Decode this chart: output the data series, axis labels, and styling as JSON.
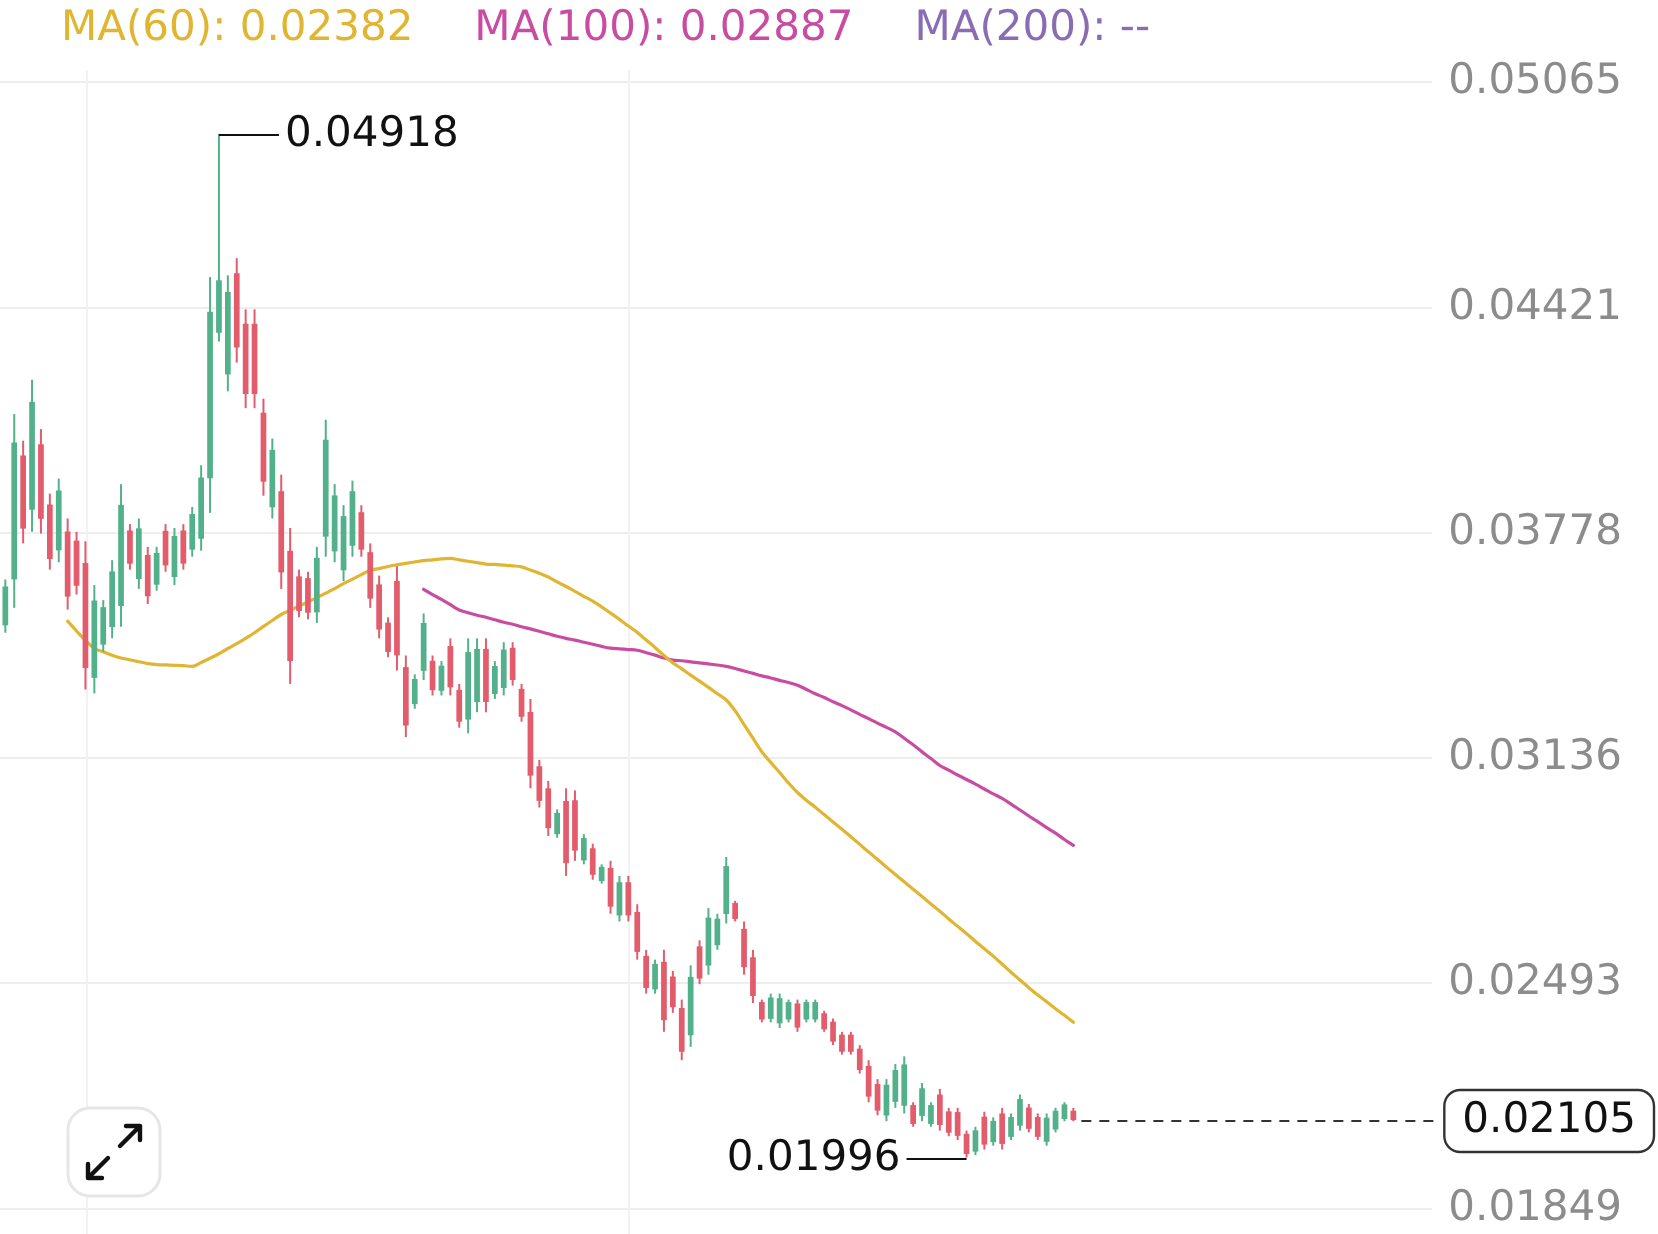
{
  "chart_data": {
    "type": "candlestick",
    "categories": [
      null,
      null,
      null,
      null,
      null,
      null,
      null,
      null,
      null,
      null,
      null,
      null,
      null,
      null,
      null,
      null,
      null,
      null,
      null,
      null,
      null,
      null,
      null,
      null,
      null,
      null,
      null,
      null,
      null,
      null,
      null,
      null,
      null,
      null,
      null,
      null,
      null,
      null,
      null,
      null,
      null,
      null,
      null,
      null,
      null,
      null,
      null,
      null,
      null,
      null,
      null,
      null,
      null,
      null,
      null,
      null,
      null,
      null,
      null,
      null,
      null,
      null,
      null,
      null,
      null,
      null,
      null,
      null,
      null,
      null,
      null,
      null,
      null,
      null,
      null,
      null,
      null,
      null,
      null,
      null,
      null,
      null,
      null,
      null,
      null,
      null,
      null,
      null,
      null,
      null,
      null,
      null,
      null,
      null,
      null,
      null,
      null,
      null,
      null,
      null,
      null,
      null,
      null,
      null,
      null,
      null,
      null,
      null,
      null,
      null,
      null,
      null,
      null,
      null,
      null,
      null,
      null,
      null,
      null,
      null,
      null
    ],
    "ohlc": [
      [
        0.03517,
        0.03646,
        0.03494,
        0.03624
      ],
      [
        0.03648,
        0.04118,
        0.03565,
        0.04035
      ],
      [
        0.03998,
        0.04042,
        0.03749,
        0.03793
      ],
      [
        0.03847,
        0.04216,
        0.03782,
        0.04151
      ],
      [
        0.0403,
        0.04075,
        0.03777,
        0.03821
      ],
      [
        0.03858,
        0.03891,
        0.03674,
        0.03706
      ],
      [
        0.03731,
        0.03934,
        0.03695,
        0.03898
      ],
      [
        0.03781,
        0.0382,
        0.0356,
        0.03599
      ],
      [
        0.03755,
        0.03782,
        0.03603,
        0.0363
      ],
      [
        0.03691,
        0.03755,
        0.03332,
        0.03395
      ],
      [
        0.03367,
        0.0363,
        0.03321,
        0.03584
      ],
      [
        0.03462,
        0.03587,
        0.0344,
        0.03565
      ],
      [
        0.03512,
        0.03701,
        0.03478,
        0.03667
      ],
      [
        0.03572,
        0.03918,
        0.03511,
        0.03857
      ],
      [
        0.03784,
        0.03804,
        0.03674,
        0.03693
      ],
      [
        0.03649,
        0.0382,
        0.03619,
        0.0379
      ],
      [
        0.03714,
        0.03739,
        0.03576,
        0.036
      ],
      [
        0.03633,
        0.03739,
        0.03614,
        0.0372
      ],
      [
        0.03783,
        0.03804,
        0.03668,
        0.03688
      ],
      [
        0.03655,
        0.03793,
        0.0363,
        0.03768
      ],
      [
        0.03784,
        0.03804,
        0.03674,
        0.03693
      ],
      [
        0.03733,
        0.03853,
        0.03711,
        0.03831
      ],
      [
        0.03764,
        0.03972,
        0.03728,
        0.03935
      ],
      [
        0.03937,
        0.04509,
        0.03836,
        0.04408
      ],
      [
        0.04352,
        0.04918,
        0.04325,
        0.04498
      ],
      [
        0.04233,
        0.04514,
        0.04183,
        0.04465
      ],
      [
        0.04518,
        0.04563,
        0.04265,
        0.0431
      ],
      [
        0.04374,
        0.04417,
        0.04135,
        0.04177
      ],
      [
        0.04374,
        0.04417,
        0.04135,
        0.04177
      ],
      [
        0.0412,
        0.04162,
        0.03885,
        0.03927
      ],
      [
        0.03854,
        0.04048,
        0.0382,
        0.04014
      ],
      [
        0.03896,
        0.03945,
        0.03619,
        0.03668
      ],
      [
        0.03726,
        0.03793,
        0.03348,
        0.03415
      ],
      [
        0.03653,
        0.03674,
        0.03538,
        0.03558
      ],
      [
        0.03648,
        0.03668,
        0.03532,
        0.03553
      ],
      [
        0.03554,
        0.03739,
        0.03522,
        0.03706
      ],
      [
        0.0377,
        0.04102,
        0.03711,
        0.04043
      ],
      [
        0.03728,
        0.03918,
        0.03695,
        0.03884
      ],
      [
        0.03674,
        0.03858,
        0.03641,
        0.03825
      ],
      [
        0.03744,
        0.03928,
        0.03711,
        0.03896
      ],
      [
        0.03836,
        0.03858,
        0.03711,
        0.03733
      ],
      [
        0.03722,
        0.03749,
        0.03565,
        0.03593
      ],
      [
        0.0363,
        0.03657,
        0.03478,
        0.03505
      ],
      [
        0.03521,
        0.03538,
        0.03424,
        0.03441
      ],
      [
        0.0364,
        0.03684,
        0.03386,
        0.03431
      ],
      [
        0.03394,
        0.03429,
        0.03196,
        0.03231
      ],
      [
        0.03292,
        0.03375,
        0.03277,
        0.0336
      ],
      [
        0.03387,
        0.03549,
        0.03359,
        0.0352
      ],
      [
        0.03412,
        0.03429,
        0.03315,
        0.03332
      ],
      [
        0.0333,
        0.03413,
        0.03315,
        0.03398
      ],
      [
        0.03454,
        0.03478,
        0.03315,
        0.0334
      ],
      [
        0.03329,
        0.03348,
        0.03223,
        0.03242
      ],
      [
        0.03248,
        0.03478,
        0.03207,
        0.03437
      ],
      [
        0.03298,
        0.03478,
        0.03267,
        0.03446
      ],
      [
        0.03446,
        0.03478,
        0.03267,
        0.03298
      ],
      [
        0.03321,
        0.03413,
        0.03305,
        0.03397
      ],
      [
        0.03338,
        0.03467,
        0.03315,
        0.03444
      ],
      [
        0.03449,
        0.03467,
        0.03343,
        0.03361
      ],
      [
        0.03332,
        0.03348,
        0.0324,
        0.03256
      ],
      [
        0.03266,
        0.03305,
        0.0305,
        0.03088
      ],
      [
        0.03111,
        0.03131,
        0.02995,
        0.03016
      ],
      [
        0.03048,
        0.03071,
        0.02914,
        0.02938
      ],
      [
        0.02921,
        0.0299,
        0.02909,
        0.02978
      ],
      [
        0.03012,
        0.0305,
        0.028,
        0.02838
      ],
      [
        0.03014,
        0.03044,
        0.02843,
        0.02874
      ],
      [
        0.02846,
        0.02919,
        0.02833,
        0.02906
      ],
      [
        0.02877,
        0.02892,
        0.02789,
        0.02805
      ],
      [
        0.02787,
        0.02833,
        0.02778,
        0.02824
      ],
      [
        0.02821,
        0.02843,
        0.02692,
        0.02714
      ],
      [
        0.02689,
        0.028,
        0.0267,
        0.0278
      ],
      [
        0.0278,
        0.028,
        0.0267,
        0.02689
      ],
      [
        0.02695,
        0.02719,
        0.02561,
        0.02585
      ],
      [
        0.0257,
        0.02589,
        0.02464,
        0.02482
      ],
      [
        0.02478,
        0.02561,
        0.02464,
        0.02547
      ],
      [
        0.02553,
        0.02589,
        0.02355,
        0.0239
      ],
      [
        0.02511,
        0.02529,
        0.02409,
        0.02427
      ],
      [
        0.02421,
        0.02447,
        0.02274,
        0.023
      ],
      [
        0.02347,
        0.02545,
        0.02312,
        0.0251
      ],
      [
        0.02597,
        0.02616,
        0.02491,
        0.02509
      ],
      [
        0.02546,
        0.02708,
        0.02518,
        0.02679
      ],
      [
        0.02604,
        0.02692,
        0.02589,
        0.02676
      ],
      [
        0.02693,
        0.02854,
        0.02664,
        0.02826
      ],
      [
        0.02721,
        0.02729,
        0.0267,
        0.02679
      ],
      [
        0.02647,
        0.0267,
        0.02518,
        0.02541
      ],
      [
        0.02566,
        0.02589,
        0.02437,
        0.02459
      ],
      [
        0.02438,
        0.02447,
        0.02382,
        0.02392
      ],
      [
        0.02394,
        0.02464,
        0.02382,
        0.02451
      ],
      [
        0.02381,
        0.02464,
        0.02366,
        0.02449
      ],
      [
        0.02392,
        0.02447,
        0.02382,
        0.02438
      ],
      [
        0.02434,
        0.02447,
        0.02355,
        0.02369
      ],
      [
        0.02392,
        0.02447,
        0.02382,
        0.02438
      ],
      [
        0.02392,
        0.02447,
        0.02382,
        0.02438
      ],
      [
        0.02406,
        0.02415,
        0.02355,
        0.02364
      ],
      [
        0.02382,
        0.02393,
        0.02317,
        0.02329
      ],
      [
        0.02345,
        0.02355,
        0.0229,
        0.023
      ],
      [
        0.02345,
        0.02355,
        0.0229,
        0.023
      ],
      [
        0.02305,
        0.02317,
        0.02236,
        0.02248
      ],
      [
        0.02256,
        0.02274,
        0.02154,
        0.02172
      ],
      [
        0.02204,
        0.0222,
        0.02117,
        0.02132
      ],
      [
        0.02118,
        0.0222,
        0.021,
        0.02202
      ],
      [
        0.02157,
        0.02263,
        0.02138,
        0.02244
      ],
      [
        0.02146,
        0.02285,
        0.02122,
        0.0226
      ],
      [
        0.02144,
        0.02154,
        0.02084,
        0.02094
      ],
      [
        0.02117,
        0.02209,
        0.021,
        0.02192
      ],
      [
        0.02094,
        0.02154,
        0.02084,
        0.02144
      ],
      [
        0.02174,
        0.02192,
        0.02073,
        0.02091
      ],
      [
        0.02126,
        0.02138,
        0.02057,
        0.02069
      ],
      [
        0.02124,
        0.02138,
        0.02046,
        0.0206
      ],
      [
        0.02062,
        0.02073,
        0.01996,
        0.02008
      ],
      [
        0.02015,
        0.02084,
        0.02003,
        0.02072
      ],
      [
        0.02111,
        0.02127,
        0.02019,
        0.02035
      ],
      [
        0.02042,
        0.02111,
        0.0203,
        0.02099
      ],
      [
        0.0212,
        0.02138,
        0.02019,
        0.02037
      ],
      [
        0.02057,
        0.02122,
        0.02046,
        0.0211
      ],
      [
        0.02089,
        0.02176,
        0.02073,
        0.02161
      ],
      [
        0.02137,
        0.02149,
        0.02068,
        0.0208
      ],
      [
        0.0211,
        0.02122,
        0.02046,
        0.02057
      ],
      [
        0.02043,
        0.02122,
        0.0203,
        0.02108
      ],
      [
        0.02078,
        0.02138,
        0.02068,
        0.02128
      ],
      [
        0.02108,
        0.02154,
        0.021,
        0.02146
      ],
      [
        0.02128,
        0.02138,
        0.021,
        0.02105
      ]
    ],
    "colors": [
      "#52b18a",
      "#52b18a",
      "#e25c6c",
      "#52b18a",
      "#e25c6c",
      "#e25c6c",
      "#52b18a",
      "#e25c6c",
      "#e25c6c",
      "#e25c6c",
      "#52b18a",
      "#52b18a",
      "#52b18a",
      "#52b18a",
      "#e25c6c",
      "#52b18a",
      "#e25c6c",
      "#52b18a",
      "#e25c6c",
      "#52b18a",
      "#e25c6c",
      "#52b18a",
      "#52b18a",
      "#52b18a",
      "#52b18a",
      "#52b18a",
      "#e25c6c",
      "#e25c6c",
      "#e25c6c",
      "#e25c6c",
      "#52b18a",
      "#e25c6c",
      "#e25c6c",
      "#e25c6c",
      "#e25c6c",
      "#52b18a",
      "#52b18a",
      "#52b18a",
      "#52b18a",
      "#52b18a",
      "#e25c6c",
      "#e25c6c",
      "#e25c6c",
      "#e25c6c",
      "#e25c6c",
      "#e25c6c",
      "#52b18a",
      "#52b18a",
      "#e25c6c",
      "#52b18a",
      "#e25c6c",
      "#e25c6c",
      "#52b18a",
      "#52b18a",
      "#e25c6c",
      "#52b18a",
      "#52b18a",
      "#e25c6c",
      "#e25c6c",
      "#e25c6c",
      "#e25c6c",
      "#e25c6c",
      "#52b18a",
      "#e25c6c",
      "#e25c6c",
      "#52b18a",
      "#e25c6c",
      "#52b18a",
      "#e25c6c",
      "#52b18a",
      "#e25c6c",
      "#e25c6c",
      "#e25c6c",
      "#52b18a",
      "#e25c6c",
      "#e25c6c",
      "#e25c6c",
      "#52b18a",
      "#e25c6c",
      "#52b18a",
      "#52b18a",
      "#52b18a",
      "#e25c6c",
      "#e25c6c",
      "#e25c6c",
      "#e25c6c",
      "#52b18a",
      "#52b18a",
      "#52b18a",
      "#e25c6c",
      "#52b18a",
      "#52b18a",
      "#e25c6c",
      "#e25c6c",
      "#e25c6c",
      "#e25c6c",
      "#e25c6c",
      "#e25c6c",
      "#e25c6c",
      "#52b18a",
      "#52b18a",
      "#52b18a",
      "#e25c6c",
      "#52b18a",
      "#52b18a",
      "#e25c6c",
      "#e25c6c",
      "#e25c6c",
      "#e25c6c",
      "#52b18a",
      "#e25c6c",
      "#52b18a",
      "#e25c6c",
      "#52b18a",
      "#52b18a",
      "#e25c6c",
      "#e25c6c",
      "#52b18a",
      "#52b18a",
      "#52b18a",
      "#e25c6c"
    ],
    "series": [
      {
        "name": "MA(60): 0.02382",
        "type": "line",
        "color": "#e0b531",
        "values": [
          null,
          null,
          null,
          null,
          null,
          null,
          null,
          0.03527,
          0.03499,
          0.03472,
          0.03449,
          0.0344,
          0.0343,
          0.03422,
          0.03417,
          0.03411,
          0.03406,
          0.03403,
          0.03402,
          0.03401,
          0.034,
          0.03398,
          0.03409,
          0.03421,
          0.03434,
          0.03449,
          0.03463,
          0.03478,
          0.03494,
          0.03512,
          0.03529,
          0.03546,
          0.03558,
          0.0357,
          0.03582,
          0.03594,
          0.03607,
          0.0362,
          0.03634,
          0.03647,
          0.0366,
          0.03672,
          0.03677,
          0.03683,
          0.03688,
          0.03692,
          0.03696,
          0.037,
          0.03702,
          0.03705,
          0.03706,
          0.03702,
          0.03698,
          0.03694,
          0.0369,
          0.03689,
          0.03687,
          0.03685,
          0.03682,
          0.03673,
          0.03664,
          0.03653,
          0.03639,
          0.03626,
          0.03612,
          0.03598,
          0.03584,
          0.03568,
          0.0355,
          0.03532,
          0.03513,
          0.03495,
          0.03473,
          0.03452,
          0.03429,
          0.03408,
          0.03391,
          0.03373,
          0.03356,
          0.03338,
          0.0332,
          0.03302,
          0.03271,
          0.03232,
          0.03193,
          0.03154,
          0.03124,
          0.03095,
          0.03065,
          0.03038,
          0.03016,
          0.02996,
          0.02975,
          0.02954,
          0.02933,
          0.02912,
          0.0289,
          0.02868,
          0.02847,
          0.02825,
          0.02804,
          0.02783,
          0.02762,
          0.02741,
          0.0272,
          0.02699,
          0.02677,
          0.02656,
          0.02635,
          0.02613,
          0.02592,
          0.02571,
          0.02548,
          0.02525,
          0.02503,
          0.02481,
          0.0246,
          0.02441,
          0.02421,
          0.02402,
          0.02382
        ]
      },
      {
        "name": "MA(100): 0.02887",
        "type": "line",
        "color": "#c94ca3",
        "values": [
          null,
          null,
          null,
          null,
          null,
          null,
          null,
          null,
          null,
          null,
          null,
          null,
          null,
          null,
          null,
          null,
          null,
          null,
          null,
          null,
          null,
          null,
          null,
          null,
          null,
          null,
          null,
          null,
          null,
          null,
          null,
          null,
          null,
          null,
          null,
          null,
          null,
          null,
          null,
          null,
          null,
          null,
          null,
          null,
          null,
          null,
          null,
          0.03618,
          0.03603,
          0.03589,
          0.03574,
          0.03559,
          0.03551,
          0.03544,
          0.03538,
          0.03531,
          0.03524,
          0.03518,
          0.03511,
          0.03505,
          0.03498,
          0.03491,
          0.03484,
          0.03478,
          0.03473,
          0.03467,
          0.03461,
          0.03455,
          0.0345,
          0.03448,
          0.03446,
          0.03444,
          0.03437,
          0.0343,
          0.03422,
          0.03416,
          0.03414,
          0.03411,
          0.03408,
          0.03405,
          0.03402,
          0.03398,
          0.03392,
          0.03385,
          0.03378,
          0.03371,
          0.03365,
          0.03358,
          0.03352,
          0.03344,
          0.03332,
          0.0332,
          0.03309,
          0.03297,
          0.03286,
          0.03274,
          0.03261,
          0.03249,
          0.03236,
          0.03224,
          0.03211,
          0.03193,
          0.03174,
          0.03154,
          0.03135,
          0.03115,
          0.03102,
          0.03088,
          0.03075,
          0.03062,
          0.03048,
          0.03034,
          0.03021,
          0.03005,
          0.02988,
          0.02971,
          0.02955,
          0.02938,
          0.02922,
          0.02904,
          0.02887
        ]
      },
      {
        "name": "MA(200): --",
        "type": "line",
        "color": "#8a6cb5",
        "values": [
          null,
          null,
          null,
          null,
          null,
          null,
          null,
          null,
          null,
          null,
          null,
          null,
          null,
          null,
          null,
          null,
          null,
          null,
          null,
          null,
          null,
          null,
          null,
          null,
          null,
          null,
          null,
          null,
          null,
          null,
          null,
          null,
          null,
          null,
          null,
          null,
          null,
          null,
          null,
          null,
          null,
          null,
          null,
          null,
          null,
          null,
          null,
          null,
          null,
          null,
          null,
          null,
          null,
          null,
          null,
          null,
          null,
          null,
          null,
          null,
          null,
          null,
          null,
          null,
          null,
          null,
          null,
          null,
          null,
          null,
          null,
          null,
          null,
          null,
          null,
          null,
          null,
          null,
          null,
          null,
          null,
          null,
          null,
          null,
          null,
          null,
          null,
          null,
          null,
          null,
          null,
          null,
          null,
          null,
          null,
          null,
          null,
          null,
          null,
          null,
          null,
          null,
          null,
          null,
          null,
          null,
          null,
          null,
          null,
          null,
          null,
          null,
          null,
          null,
          null,
          null,
          null,
          null,
          null,
          null,
          null
        ]
      }
    ],
    "ylim": [
      0.0177,
      0.051
    ],
    "yticks": [
      0.05065,
      0.04421,
      0.03778,
      0.03136,
      0.02493,
      0.01849
    ],
    "grid": "y",
    "legend": "top",
    "tick_labels": "y",
    "marker": "none",
    "annotations": [
      "0.04918",
      "0.01996"
    ],
    "ref_lines": [
      {
        "axis": "y",
        "value": 0.02105,
        "label": "0.02105",
        "line_style": "dashed",
        "color": "#333333"
      }
    ]
  }
}
